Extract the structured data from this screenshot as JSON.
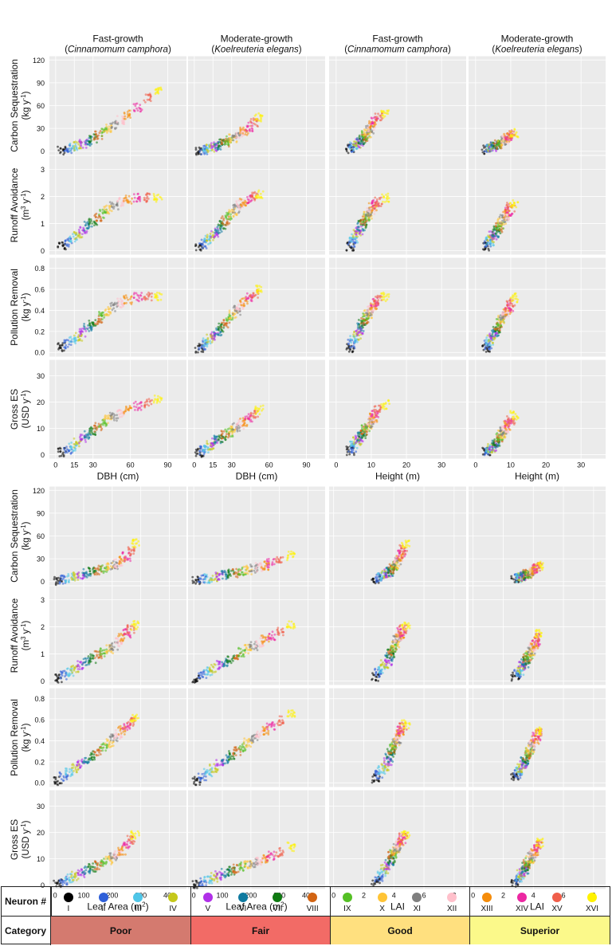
{
  "chart_data": {
    "type": "scatter",
    "column_headers": [
      {
        "line1": "Fast-growth",
        "species": "Cinnamomum camphora"
      },
      {
        "line1": "Moderate-growth",
        "species": "Koelreuteria elegans"
      },
      {
        "line1": "Fast-growth",
        "species": "Cinnamomum camphora"
      },
      {
        "line1": "Moderate-growth",
        "species": "Koelreuteria elegans"
      }
    ],
    "row_labels": [
      {
        "line1": "Carbon Sequestration",
        "line2": "(kg y",
        "sup": "-1",
        "close": ")"
      },
      {
        "line1": "Runoff Avoidance",
        "line2": "(m",
        "sup2": "3",
        "line2b": " y",
        "sup": "-1",
        "close": ")"
      },
      {
        "line1": "Pollution Removal",
        "line2": "(kg y",
        "sup": "-1",
        "close": ")"
      },
      {
        "line1": "Gross ES",
        "line2": "(USD y",
        "sup": "-1",
        "close": ")"
      }
    ],
    "y_axes": [
      {
        "ticks": [
          "0",
          "30",
          "60",
          "90",
          "120"
        ],
        "values": [
          0,
          30,
          60,
          90,
          120
        ],
        "ylim": [
          -5,
          125
        ]
      },
      {
        "ticks": [
          "0",
          "1",
          "2",
          "3"
        ],
        "values": [
          0,
          1,
          2,
          3
        ],
        "ylim": [
          -0.15,
          3.5
        ]
      },
      {
        "ticks": [
          "0.0",
          "0.2",
          "0.4",
          "0.6",
          "0.8"
        ],
        "values": [
          0,
          0.2,
          0.4,
          0.6,
          0.8
        ],
        "ylim": [
          -0.04,
          0.9
        ]
      },
      {
        "ticks": [
          "0",
          "10",
          "20",
          "30"
        ],
        "values": [
          0,
          10,
          20,
          30
        ],
        "ylim": [
          -1.5,
          36
        ]
      }
    ],
    "top_block": {
      "x_axes": [
        {
          "label": "DBH (cm)",
          "ticks": [
            "0",
            "15",
            "30",
            "60",
            "90"
          ],
          "values": [
            0,
            15,
            30,
            60,
            90
          ],
          "xlim": [
            -5,
            105
          ]
        },
        {
          "label": "DBH (cm)",
          "ticks": [
            "0",
            "15",
            "30",
            "60",
            "90"
          ],
          "values": [
            0,
            15,
            30,
            60,
            90
          ],
          "xlim": [
            -5,
            105
          ]
        },
        {
          "label": "Height (m)",
          "ticks": [
            "0",
            "10",
            "20",
            "30"
          ],
          "values": [
            0,
            10,
            20,
            30
          ],
          "xlim": [
            -2,
            37
          ]
        },
        {
          "label": "Height (m)",
          "ticks": [
            "0",
            "10",
            "20",
            "30"
          ],
          "values": [
            0,
            10,
            20,
            30
          ],
          "xlim": [
            -2,
            37
          ]
        }
      ]
    },
    "bottom_block": {
      "x_axes": [
        {
          "label": "Leaf Area (m",
          "label_sup": "2",
          "label_close": ")",
          "ticks": [
            "0",
            "100",
            "200",
            "300",
            "400"
          ],
          "values": [
            0,
            100,
            200,
            300,
            400
          ],
          "xlim": [
            -20,
            460
          ]
        },
        {
          "label": "Leaf Area (m",
          "label_sup": "2",
          "label_close": ")",
          "ticks": [
            "0",
            "100",
            "200",
            "300",
            "400"
          ],
          "values": [
            0,
            100,
            200,
            300,
            400
          ],
          "xlim": [
            -20,
            460
          ]
        },
        {
          "label": "LAI",
          "ticks": [
            "0",
            "2",
            "4",
            "6",
            "8"
          ],
          "values": [
            0,
            2,
            4,
            6,
            8
          ],
          "xlim": [
            -0.3,
            8.8
          ]
        },
        {
          "label": "LAI",
          "ticks": [
            "0",
            "2",
            "4",
            "6",
            "8"
          ],
          "values": [
            0,
            2,
            4,
            6,
            8
          ],
          "xlim": [
            -0.3,
            8.8
          ]
        }
      ]
    },
    "clusters": {
      "dbh_fast": {
        "x": [
          5,
          10,
          14,
          18,
          22,
          26,
          30,
          34,
          38,
          42,
          47,
          52,
          58,
          66,
          74,
          82
        ],
        "y": [
          [
            1,
            3,
            5,
            7,
            10,
            13,
            17,
            21,
            25,
            30,
            35,
            41,
            48,
            58,
            70,
            80
          ],
          [
            0.18,
            0.3,
            0.45,
            0.6,
            0.75,
            0.9,
            1.05,
            1.2,
            1.35,
            1.5,
            1.65,
            1.8,
            1.9,
            1.95,
            1.95,
            1.95
          ],
          [
            0.05,
            0.08,
            0.11,
            0.15,
            0.19,
            0.23,
            0.27,
            0.31,
            0.35,
            0.39,
            0.43,
            0.47,
            0.5,
            0.53,
            0.53,
            0.53
          ],
          [
            1,
            2,
            3,
            4.5,
            6,
            7.5,
            9,
            10.5,
            12,
            13.5,
            14.5,
            16,
            17,
            18.5,
            19.5,
            21
          ]
        ]
      },
      "dbh_mod": {
        "x": [
          4,
          7,
          10,
          13,
          16,
          19,
          22,
          25,
          28,
          31,
          34,
          37,
          40,
          44,
          48,
          52
        ],
        "y": [
          [
            0.5,
            1.5,
            3,
            4.5,
            6,
            8,
            10,
            12,
            14,
            17,
            20,
            23,
            27,
            32,
            38,
            44
          ],
          [
            0.15,
            0.25,
            0.4,
            0.52,
            0.65,
            0.8,
            0.95,
            1.1,
            1.25,
            1.4,
            1.55,
            1.7,
            1.8,
            1.9,
            2,
            2.1
          ],
          [
            0.04,
            0.07,
            0.1,
            0.13,
            0.16,
            0.2,
            0.24,
            0.28,
            0.32,
            0.36,
            0.4,
            0.44,
            0.48,
            0.52,
            0.56,
            0.6
          ],
          [
            0.8,
            1.5,
            2.5,
            3.5,
            4.5,
            5.5,
            6.5,
            7.5,
            8.5,
            9.5,
            10.5,
            11.5,
            12.5,
            14,
            15.5,
            17
          ]
        ]
      },
      "height_fast": {
        "x": [
          4,
          4.5,
          5,
          6,
          6.5,
          7,
          7.5,
          8,
          8.5,
          9,
          9.5,
          10,
          10.5,
          11,
          12,
          14
        ],
        "y": [
          [
            3,
            5,
            7,
            9,
            11,
            13,
            15,
            18,
            21,
            24,
            28,
            32,
            36,
            40,
            45,
            50
          ],
          [
            0.15,
            0.3,
            0.45,
            0.6,
            0.75,
            0.9,
            1,
            1.1,
            1.2,
            1.3,
            1.4,
            1.5,
            1.6,
            1.7,
            1.8,
            1.95
          ],
          [
            0.04,
            0.08,
            0.12,
            0.16,
            0.2,
            0.24,
            0.27,
            0.3,
            0.33,
            0.36,
            0.39,
            0.42,
            0.45,
            0.48,
            0.5,
            0.53
          ],
          [
            1.5,
            2.5,
            3.5,
            5,
            6,
            7,
            8,
            9,
            10,
            11,
            12,
            13,
            14,
            15,
            17,
            19
          ]
        ]
      },
      "height_mod": {
        "x": [
          3,
          3.5,
          4,
          4.5,
          5,
          5.5,
          6,
          6.5,
          7,
          7.5,
          8,
          8.5,
          9,
          9.5,
          10,
          11
        ],
        "y": [
          [
            2,
            3,
            4,
            5,
            6,
            7,
            8,
            9,
            10,
            12,
            14,
            16,
            18,
            20,
            22,
            24
          ],
          [
            0.15,
            0.25,
            0.35,
            0.45,
            0.55,
            0.65,
            0.75,
            0.85,
            0.95,
            1.05,
            1.15,
            1.25,
            1.35,
            1.45,
            1.6,
            1.75
          ],
          [
            0.04,
            0.07,
            0.1,
            0.13,
            0.16,
            0.19,
            0.22,
            0.25,
            0.28,
            0.31,
            0.34,
            0.37,
            0.4,
            0.43,
            0.47,
            0.52
          ],
          [
            1,
            1.5,
            2,
            2.5,
            3,
            4,
            5,
            6,
            7,
            8,
            9,
            10,
            11,
            12,
            13,
            15
          ]
        ]
      },
      "la_fast": {
        "x": [
          10,
          30,
          50,
          70,
          90,
          110,
          130,
          150,
          170,
          190,
          205,
          220,
          235,
          250,
          265,
          280
        ],
        "y": [
          [
            1,
            3,
            5,
            7,
            9,
            11,
            13,
            15,
            17,
            19,
            21,
            24,
            28,
            33,
            40,
            50
          ],
          [
            0.1,
            0.22,
            0.34,
            0.46,
            0.58,
            0.7,
            0.82,
            0.94,
            1.06,
            1.18,
            1.3,
            1.45,
            1.6,
            1.75,
            1.9,
            2.05
          ],
          [
            0.02,
            0.06,
            0.1,
            0.14,
            0.18,
            0.22,
            0.26,
            0.3,
            0.34,
            0.38,
            0.42,
            0.46,
            0.5,
            0.54,
            0.58,
            0.61
          ],
          [
            0.5,
            1.5,
            2.5,
            3.5,
            4.5,
            5.5,
            6.5,
            7.5,
            8.5,
            9.5,
            10.5,
            11.5,
            13,
            15,
            17,
            19
          ]
        ]
      },
      "la_mod": {
        "x": [
          10,
          30,
          50,
          70,
          90,
          110,
          130,
          150,
          170,
          190,
          210,
          230,
          250,
          270,
          300,
          340
        ],
        "y": [
          [
            1,
            2.5,
            4,
            5.5,
            7,
            8.5,
            10,
            11.5,
            13,
            15,
            17,
            19,
            21,
            24,
            28,
            34
          ],
          [
            0.1,
            0.22,
            0.34,
            0.46,
            0.58,
            0.7,
            0.82,
            0.94,
            1.06,
            1.18,
            1.3,
            1.42,
            1.54,
            1.66,
            1.85,
            2.1
          ],
          [
            0.02,
            0.06,
            0.1,
            0.14,
            0.18,
            0.22,
            0.26,
            0.3,
            0.34,
            0.38,
            0.42,
            0.46,
            0.5,
            0.54,
            0.59,
            0.66
          ],
          [
            0.5,
            1.3,
            2.1,
            2.9,
            3.7,
            4.5,
            5.3,
            6.1,
            6.9,
            7.7,
            8.5,
            9.3,
            10.1,
            11,
            12.5,
            14.5
          ]
        ]
      },
      "lai_fast": {
        "x": [
          2.8,
          3,
          3.2,
          3.4,
          3.6,
          3.7,
          3.8,
          3.9,
          4,
          4.1,
          4.2,
          4.3,
          4.4,
          4.5,
          4.6,
          4.8
        ],
        "y": [
          [
            3,
            5,
            7,
            9,
            11,
            13,
            15,
            17,
            20,
            23,
            26,
            29,
            32,
            36,
            42,
            50
          ],
          [
            0.15,
            0.3,
            0.45,
            0.6,
            0.75,
            0.9,
            1,
            1.1,
            1.2,
            1.35,
            1.5,
            1.6,
            1.7,
            1.8,
            1.9,
            2
          ],
          [
            0.04,
            0.08,
            0.12,
            0.16,
            0.2,
            0.24,
            0.28,
            0.32,
            0.35,
            0.38,
            0.41,
            0.44,
            0.47,
            0.5,
            0.53,
            0.56
          ],
          [
            1.5,
            3,
            4.5,
            6,
            7.5,
            9,
            10,
            11,
            12,
            13,
            14,
            15,
            16,
            17,
            18,
            19
          ]
        ]
      },
      "lai_mod": {
        "x": [
          2.8,
          3,
          3.1,
          3.2,
          3.3,
          3.4,
          3.5,
          3.6,
          3.7,
          3.8,
          3.9,
          4,
          4.1,
          4.2,
          4.3,
          4.4
        ],
        "y": [
          [
            3,
            4,
            5,
            6,
            7,
            8,
            9,
            10,
            11,
            12,
            13,
            14,
            15,
            17,
            19,
            21
          ],
          [
            0.15,
            0.25,
            0.35,
            0.45,
            0.55,
            0.65,
            0.75,
            0.85,
            0.95,
            1.05,
            1.15,
            1.25,
            1.35,
            1.45,
            1.6,
            1.75
          ],
          [
            0.05,
            0.08,
            0.11,
            0.14,
            0.17,
            0.2,
            0.23,
            0.26,
            0.29,
            0.32,
            0.35,
            0.38,
            0.41,
            0.44,
            0.47,
            0.5
          ],
          [
            1,
            2,
            3,
            4,
            5,
            6,
            7,
            8,
            9,
            10,
            11,
            12,
            13,
            14,
            15,
            16
          ]
        ]
      }
    },
    "panel_cluster_map": {
      "top": [
        "dbh_fast",
        "dbh_mod",
        "height_fast",
        "height_mod"
      ],
      "bottom": [
        "la_fast",
        "la_mod",
        "lai_fast",
        "lai_mod"
      ]
    }
  },
  "legend": {
    "neuron_label": "Neuron #",
    "category_label": "Category",
    "neurons": [
      {
        "num": "I",
        "color": "#000000"
      },
      {
        "num": "II",
        "color": "#2e5fd8"
      },
      {
        "num": "III",
        "color": "#4fc6e8"
      },
      {
        "num": "IV",
        "color": "#c5c81a"
      },
      {
        "num": "V",
        "color": "#b030e8"
      },
      {
        "num": "VI",
        "color": "#0f7aa0"
      },
      {
        "num": "VII",
        "color": "#0f7a12"
      },
      {
        "num": "VIII",
        "color": "#d26412"
      },
      {
        "num": "IX",
        "color": "#55c025"
      },
      {
        "num": "X",
        "color": "#ffc436"
      },
      {
        "num": "XI",
        "color": "#7f7f7f"
      },
      {
        "num": "XII",
        "color": "#ffc0cb"
      },
      {
        "num": "XIII",
        "color": "#f58c0a"
      },
      {
        "num": "XIV",
        "color": "#ec28a2"
      },
      {
        "num": "XV",
        "color": "#f05e4a"
      },
      {
        "num": "XVI",
        "color": "#fff200"
      }
    ],
    "categories": [
      {
        "name": "Poor",
        "color": "#d47a6f"
      },
      {
        "name": "Fair",
        "color": "#f26b66"
      },
      {
        "name": "Good",
        "color": "#ffe07f"
      },
      {
        "name": "Superior",
        "color": "#fbf98a"
      }
    ]
  },
  "colors": {
    "panel_bg": "#ebebeb",
    "grid": "#ffffff",
    "page_bg": "#ffffff"
  }
}
